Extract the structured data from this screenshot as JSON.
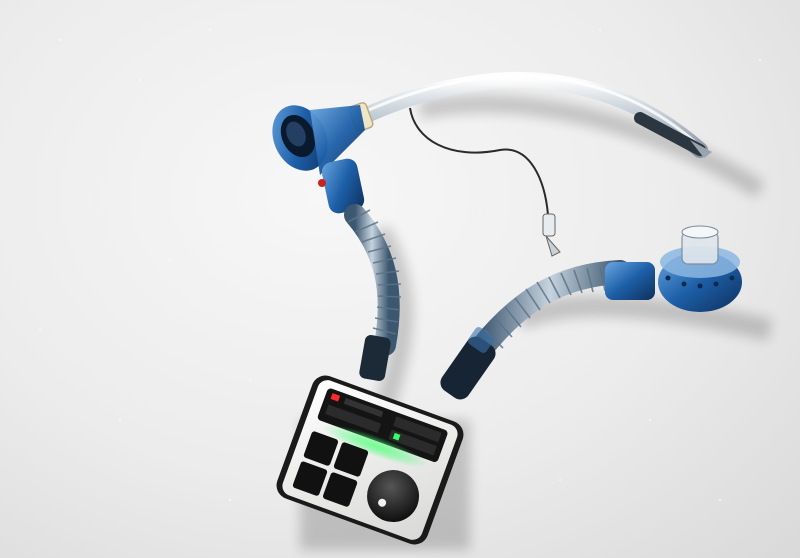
{
  "scene": {
    "subject": "ventilator-breathing-circuit-render",
    "colors": {
      "background": "#ececec",
      "tube_clear": "#c8d2dc",
      "connector_blue": "#1d5fa8",
      "device_body": "#f2f2f0",
      "device_dark": "#1a1a1a",
      "led_green": "#33ff66",
      "led_red": "#ff2a2a"
    },
    "icons": [
      "endotracheal-tube-icon",
      "pilot-balloon-icon",
      "corrugated-hose-icon",
      "flow-sensor-icon",
      "control-unit-icon",
      "rotary-knob-icon"
    ]
  }
}
